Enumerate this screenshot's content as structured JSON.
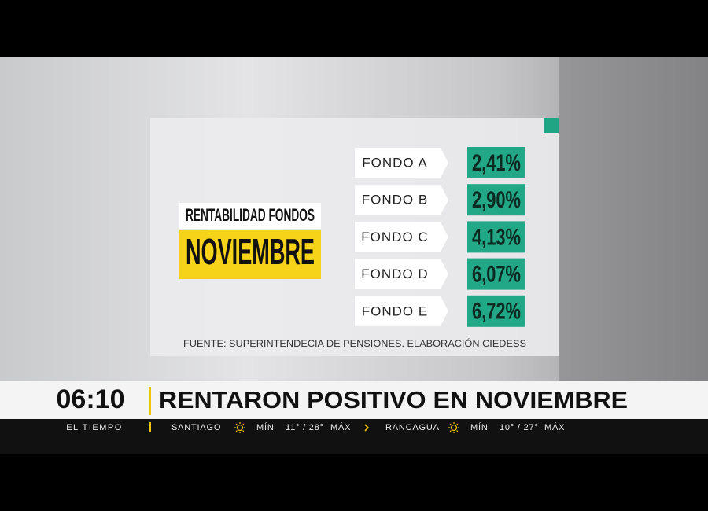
{
  "graphic": {
    "title": "RENTABILIDAD FONDOS",
    "month": "NOVIEMBRE",
    "funds": [
      {
        "name": "FONDO A",
        "value": "2,41%"
      },
      {
        "name": "FONDO B",
        "value": "2,90%"
      },
      {
        "name": "FONDO C",
        "value": "4,13%"
      },
      {
        "name": "FONDO D",
        "value": "6,07%"
      },
      {
        "name": "FONDO E",
        "value": "6,72%"
      }
    ],
    "source": "FUENTE: SUPERINTENDECIA DE PENSIONES. ELABORACIÓN CIEDESS"
  },
  "lower_third": {
    "time": "06:10",
    "headline": "RENTARON POSITIVO EN NOVIEMBRE"
  },
  "ticker": {
    "label": "EL TIEMPO",
    "cities": [
      {
        "name": "SANTIAGO",
        "min_label": "MÍN",
        "temps": "11° / 28°",
        "max_label": "MÁX"
      },
      {
        "name": "RANCAGUA",
        "min_label": "MÍN",
        "temps": "10° / 27°",
        "max_label": "MÁX"
      }
    ]
  }
}
